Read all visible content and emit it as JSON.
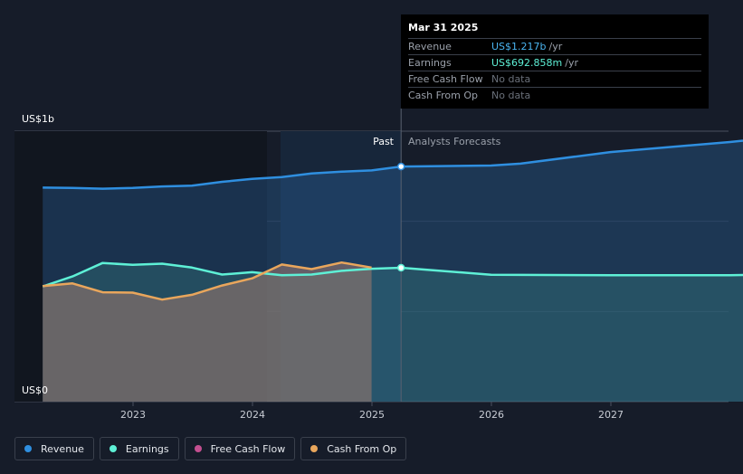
{
  "chart_data": {
    "type": "area",
    "y_top_label": "US$1b",
    "y_bottom_label": "US$0",
    "ylim": [
      0,
      1400
    ],
    "x_ticks": [
      "2023",
      "2024",
      "2025",
      "2026",
      "2027"
    ],
    "past_label": "Past",
    "forecast_label": "Analysts Forecasts",
    "series": [
      {
        "name": "Revenue",
        "color": "#2f8fe0",
        "points": [
          [
            "2022-03-31",
            1108
          ],
          [
            "2022-06-30",
            1106
          ],
          [
            "2022-09-30",
            1102
          ],
          [
            "2022-12-31",
            1106
          ],
          [
            "2023-03-31",
            1114
          ],
          [
            "2023-06-30",
            1118
          ],
          [
            "2023-09-30",
            1138
          ],
          [
            "2023-12-31",
            1153
          ],
          [
            "2024-03-31",
            1162
          ],
          [
            "2024-06-30",
            1181
          ],
          [
            "2024-09-30",
            1190
          ],
          [
            "2024-12-31",
            1197
          ],
          [
            "2025-03-31",
            1217
          ],
          [
            "2025-12-31",
            1222
          ],
          [
            "2026-03-31",
            1232
          ],
          [
            "2026-12-31",
            1292
          ],
          [
            "2027-12-31",
            1344
          ],
          [
            "2028-06-30",
            1376
          ]
        ]
      },
      {
        "name": "Earnings",
        "color": "#5ef0d6",
        "points": [
          [
            "2022-03-31",
            596
          ],
          [
            "2022-06-30",
            648
          ],
          [
            "2022-09-30",
            718
          ],
          [
            "2022-12-31",
            708
          ],
          [
            "2023-03-31",
            714
          ],
          [
            "2023-06-30",
            694
          ],
          [
            "2023-09-30",
            658
          ],
          [
            "2023-12-31",
            670
          ],
          [
            "2024-03-31",
            654
          ],
          [
            "2024-06-30",
            658
          ],
          [
            "2024-09-30",
            677
          ],
          [
            "2024-12-31",
            688
          ],
          [
            "2025-03-31",
            693
          ],
          [
            "2025-12-31",
            657
          ],
          [
            "2026-12-31",
            654
          ],
          [
            "2027-12-31",
            654
          ],
          [
            "2028-06-30",
            661
          ]
        ]
      },
      {
        "name": "Free Cash Flow",
        "color": "#c34f90",
        "points": []
      },
      {
        "name": "Cash From Op",
        "color": "#e9a65c",
        "points": [
          [
            "2022-03-31",
            598
          ],
          [
            "2022-06-30",
            612
          ],
          [
            "2022-09-30",
            566
          ],
          [
            "2022-12-31",
            564
          ],
          [
            "2023-03-31",
            528
          ],
          [
            "2023-06-30",
            553
          ],
          [
            "2023-09-30",
            601
          ],
          [
            "2023-12-31",
            638
          ],
          [
            "2024-03-31",
            710
          ],
          [
            "2024-06-30",
            686
          ],
          [
            "2024-09-30",
            720
          ],
          [
            "2024-12-31",
            694
          ]
        ]
      }
    ],
    "highlight_date": "2025-03-31"
  },
  "tooltip": {
    "date": "Mar 31 2025",
    "rows": [
      {
        "name": "Revenue",
        "value": "US$1.217b",
        "unit": "/yr"
      },
      {
        "name": "Earnings",
        "value": "US$692.858m",
        "unit": "/yr"
      },
      {
        "name": "Free Cash Flow",
        "value": "No data",
        "unit": ""
      },
      {
        "name": "Cash From Op",
        "value": "No data",
        "unit": ""
      }
    ]
  },
  "legend": [
    {
      "name": "Revenue",
      "color": "#2f8fe0"
    },
    {
      "name": "Earnings",
      "color": "#5ef0d6"
    },
    {
      "name": "Free Cash Flow",
      "color": "#c34f90"
    },
    {
      "name": "Cash From Op",
      "color": "#e9a65c"
    }
  ]
}
